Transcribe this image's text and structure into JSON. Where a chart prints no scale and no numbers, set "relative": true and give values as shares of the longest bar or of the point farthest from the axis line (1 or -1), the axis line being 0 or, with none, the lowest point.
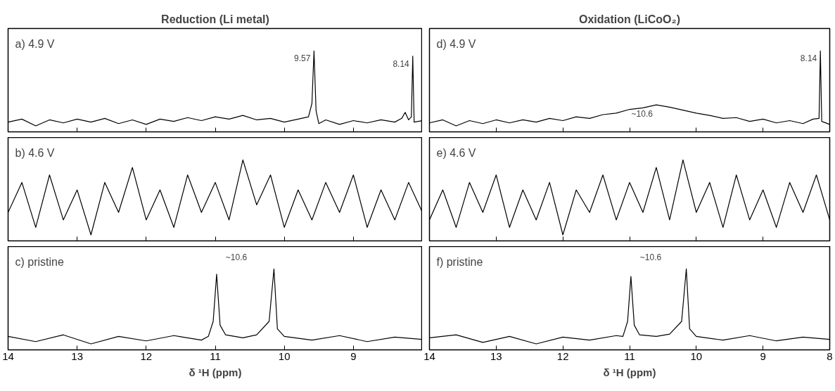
{
  "chart_data": [
    {
      "type": "line",
      "relative": true,
      "title": "Reduction (Li metal)",
      "xlim": [
        14,
        8
      ],
      "xticks": [
        14,
        13,
        12,
        11,
        10,
        9
      ],
      "tick_labels": false,
      "grid": false,
      "line_style": "solid",
      "annotations": [
        "a) 4.9 V",
        {
          "text": "9.57",
          "x": 9.57,
          "y": 1
        },
        {
          "text": "8.14",
          "x": 8.14,
          "y": 0.93
        }
      ],
      "series": [
        {
          "color": "#000000",
          "x": [
            14.0,
            13.8,
            13.6,
            13.4,
            13.2,
            13.0,
            12.8,
            12.6,
            12.4,
            12.2,
            12.0,
            11.8,
            11.6,
            11.4,
            11.2,
            11.0,
            10.8,
            10.6,
            10.4,
            10.2,
            10.0,
            9.8,
            9.65,
            9.6,
            9.57,
            9.54,
            9.5,
            9.4,
            9.2,
            9.0,
            8.8,
            8.6,
            8.4,
            8.3,
            8.25,
            8.2,
            8.16,
            8.14,
            8.12,
            8.0
          ],
          "values": [
            0.05,
            0.09,
            0.0,
            0.08,
            0.04,
            0.09,
            0.05,
            0.1,
            0.03,
            0.08,
            0.02,
            0.09,
            0.06,
            0.11,
            0.07,
            0.12,
            0.09,
            0.14,
            0.08,
            0.1,
            0.05,
            0.09,
            0.12,
            0.3,
            1,
            0.2,
            0.03,
            0.08,
            0.02,
            0.07,
            0.04,
            0.08,
            0.05,
            0.1,
            0.18,
            0.08,
            0.12,
            0.93,
            0.05,
            0.07
          ]
        }
      ]
    },
    {
      "type": "line",
      "relative": true,
      "title": "Oxidation (LiCoO₂)",
      "xlim": [
        14,
        8
      ],
      "xticks": [
        13,
        12,
        11,
        10,
        9,
        8
      ],
      "tick_labels": false,
      "grid": false,
      "line_style": "solid",
      "annotations": [
        "d) 4.9 V",
        {
          "text": "~10.6",
          "x": 10.6,
          "y": 0.28
        },
        {
          "text": "8.14",
          "x": 8.14,
          "y": 1
        }
      ],
      "series": [
        {
          "color": "#000000",
          "x": [
            14.0,
            13.8,
            13.6,
            13.4,
            13.2,
            13.0,
            12.8,
            12.6,
            12.4,
            12.2,
            12.0,
            11.8,
            11.6,
            11.4,
            11.2,
            11.0,
            10.8,
            10.6,
            10.4,
            10.2,
            10.0,
            9.8,
            9.6,
            9.4,
            9.2,
            9.0,
            8.8,
            8.6,
            8.4,
            8.25,
            8.16,
            8.14,
            8.12,
            8.0
          ],
          "values": [
            0.04,
            0.08,
            0.0,
            0.07,
            0.03,
            0.08,
            0.04,
            0.08,
            0.05,
            0.1,
            0.07,
            0.12,
            0.1,
            0.15,
            0.17,
            0.22,
            0.24,
            0.28,
            0.25,
            0.21,
            0.17,
            0.14,
            0.1,
            0.11,
            0.06,
            0.09,
            0.04,
            0.07,
            0.03,
            0.09,
            0.1,
            1,
            0.06,
            0.02
          ]
        }
      ]
    },
    {
      "type": "line",
      "relative": true,
      "xlim": [
        14,
        8
      ],
      "xticks": [
        14,
        13,
        12,
        11,
        10,
        9
      ],
      "tick_labels": false,
      "grid": false,
      "line_style": "solid",
      "annotations": [
        "b) 4.6 V"
      ],
      "series": [
        {
          "color": "#000000",
          "x": [
            14.0,
            13.8,
            13.6,
            13.4,
            13.2,
            13.0,
            12.8,
            12.6,
            12.4,
            12.2,
            12.0,
            11.8,
            11.6,
            11.4,
            11.2,
            11.0,
            10.8,
            10.6,
            10.4,
            10.2,
            10.0,
            9.8,
            9.6,
            9.4,
            9.2,
            9.0,
            8.8,
            8.6,
            8.4,
            8.2,
            8.0
          ],
          "values": [
            0.3,
            0.7,
            0.1,
            0.8,
            0.2,
            0.6,
            0.0,
            0.7,
            0.3,
            0.9,
            0.2,
            0.6,
            0.1,
            0.8,
            0.3,
            0.7,
            0.2,
            1,
            0.4,
            0.8,
            0.1,
            0.6,
            0.2,
            0.7,
            0.3,
            0.8,
            0.1,
            0.6,
            0.2,
            0.7,
            0.3
          ]
        }
      ]
    },
    {
      "type": "line",
      "relative": true,
      "xlim": [
        14,
        8
      ],
      "xticks": [
        13,
        12,
        11,
        10,
        9,
        8
      ],
      "tick_labels": false,
      "grid": false,
      "line_style": "solid",
      "annotations": [
        "e) 4.6 V"
      ],
      "series": [
        {
          "color": "#000000",
          "x": [
            14.0,
            13.8,
            13.6,
            13.4,
            13.2,
            13.0,
            12.8,
            12.6,
            12.4,
            12.2,
            12.0,
            11.8,
            11.6,
            11.4,
            11.2,
            11.0,
            10.8,
            10.6,
            10.4,
            10.2,
            10.0,
            9.8,
            9.6,
            9.4,
            9.2,
            9.0,
            8.8,
            8.6,
            8.4,
            8.2,
            8.0
          ],
          "values": [
            0.2,
            0.6,
            0.1,
            0.7,
            0.3,
            0.8,
            0.1,
            0.6,
            0.2,
            0.7,
            0.0,
            0.6,
            0.3,
            0.8,
            0.2,
            0.7,
            0.3,
            0.9,
            0.2,
            1,
            0.3,
            0.7,
            0.1,
            0.8,
            0.2,
            0.6,
            0.1,
            0.7,
            0.3,
            0.8,
            0.2
          ]
        }
      ]
    },
    {
      "type": "line",
      "relative": true,
      "xlabel": "δ ¹H (ppm)",
      "xlim": [
        14,
        8
      ],
      "xticks": [
        14,
        13,
        12,
        11,
        10,
        9
      ],
      "tick_labels": "x",
      "grid": false,
      "line_style": "solid",
      "annotations": [
        "c) pristine",
        "~10.6"
      ],
      "series": [
        {
          "color": "#000000",
          "x": [
            14.0,
            13.6,
            13.2,
            12.8,
            12.4,
            12.0,
            11.6,
            11.2,
            11.1,
            11.03,
            10.98,
            10.93,
            10.85,
            10.6,
            10.4,
            10.22,
            10.15,
            10.1,
            10.0,
            9.6,
            9.2,
            8.8,
            8.4,
            8.0
          ],
          "values": [
            0.1,
            0.03,
            0.12,
            0.0,
            0.1,
            0.04,
            0.11,
            0.05,
            0.1,
            0.3,
            0.93,
            0.25,
            0.12,
            0.08,
            0.12,
            0.3,
            1,
            0.2,
            0.1,
            0.05,
            0.11,
            0.03,
            0.09,
            0.06
          ]
        }
      ]
    },
    {
      "type": "line",
      "relative": true,
      "xlabel": "δ ¹H (ppm)",
      "xlim": [
        14,
        8
      ],
      "xticks": [
        14,
        13,
        12,
        11,
        10,
        9,
        8
      ],
      "tick_labels": "x",
      "grid": false,
      "line_style": "solid",
      "annotations": [
        "f) pristine",
        "~10.6"
      ],
      "series": [
        {
          "color": "#000000",
          "x": [
            14.0,
            13.6,
            13.2,
            12.8,
            12.4,
            12.0,
            11.6,
            11.2,
            11.1,
            11.03,
            10.98,
            10.93,
            10.85,
            10.6,
            10.4,
            10.22,
            10.15,
            10.1,
            10.0,
            9.6,
            9.2,
            8.8,
            8.4,
            8.0
          ],
          "values": [
            0.08,
            0.12,
            0.02,
            0.1,
            0.0,
            0.09,
            0.05,
            0.11,
            0.1,
            0.3,
            0.9,
            0.25,
            0.12,
            0.1,
            0.13,
            0.3,
            1,
            0.2,
            0.1,
            0.05,
            0.11,
            0.04,
            0.09,
            0.06
          ]
        }
      ]
    }
  ]
}
